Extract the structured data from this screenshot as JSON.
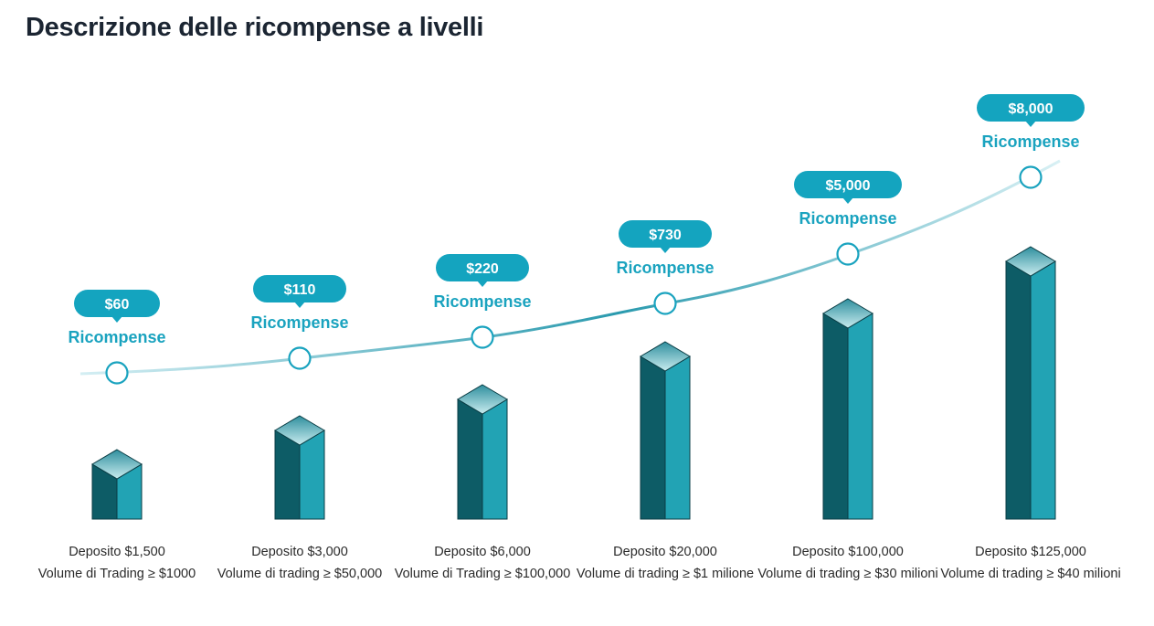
{
  "header": {
    "title": "Descrizione delle ricompense a livelli"
  },
  "tiers": [
    {
      "reward": "$60",
      "reward_text": "Ricompense",
      "deposit": "Deposito $1,500",
      "volume": "Volume di Trading ≥ $1000"
    },
    {
      "reward": "$110",
      "reward_text": "Ricompense",
      "deposit": "Deposito $3,000",
      "volume": "Volume di trading ≥ $50,000"
    },
    {
      "reward": "$220",
      "reward_text": "Ricompense",
      "deposit": "Deposito $6,000",
      "volume": "Volume di Trading ≥ $100,000"
    },
    {
      "reward": "$730",
      "reward_text": "Ricompense",
      "deposit": "Deposito $20,000",
      "volume": "Volume di trading ≥ $1 milione"
    },
    {
      "reward": "$5,000",
      "reward_text": "Ricompense",
      "deposit": "Deposito $100,000",
      "volume": "Volume di trading ≥ $30 milioni"
    },
    {
      "reward": "$8,000",
      "reward_text": "Ricompense",
      "deposit": "Deposito $125,000",
      "volume": "Volume di trading ≥ $40 milioni"
    }
  ]
}
